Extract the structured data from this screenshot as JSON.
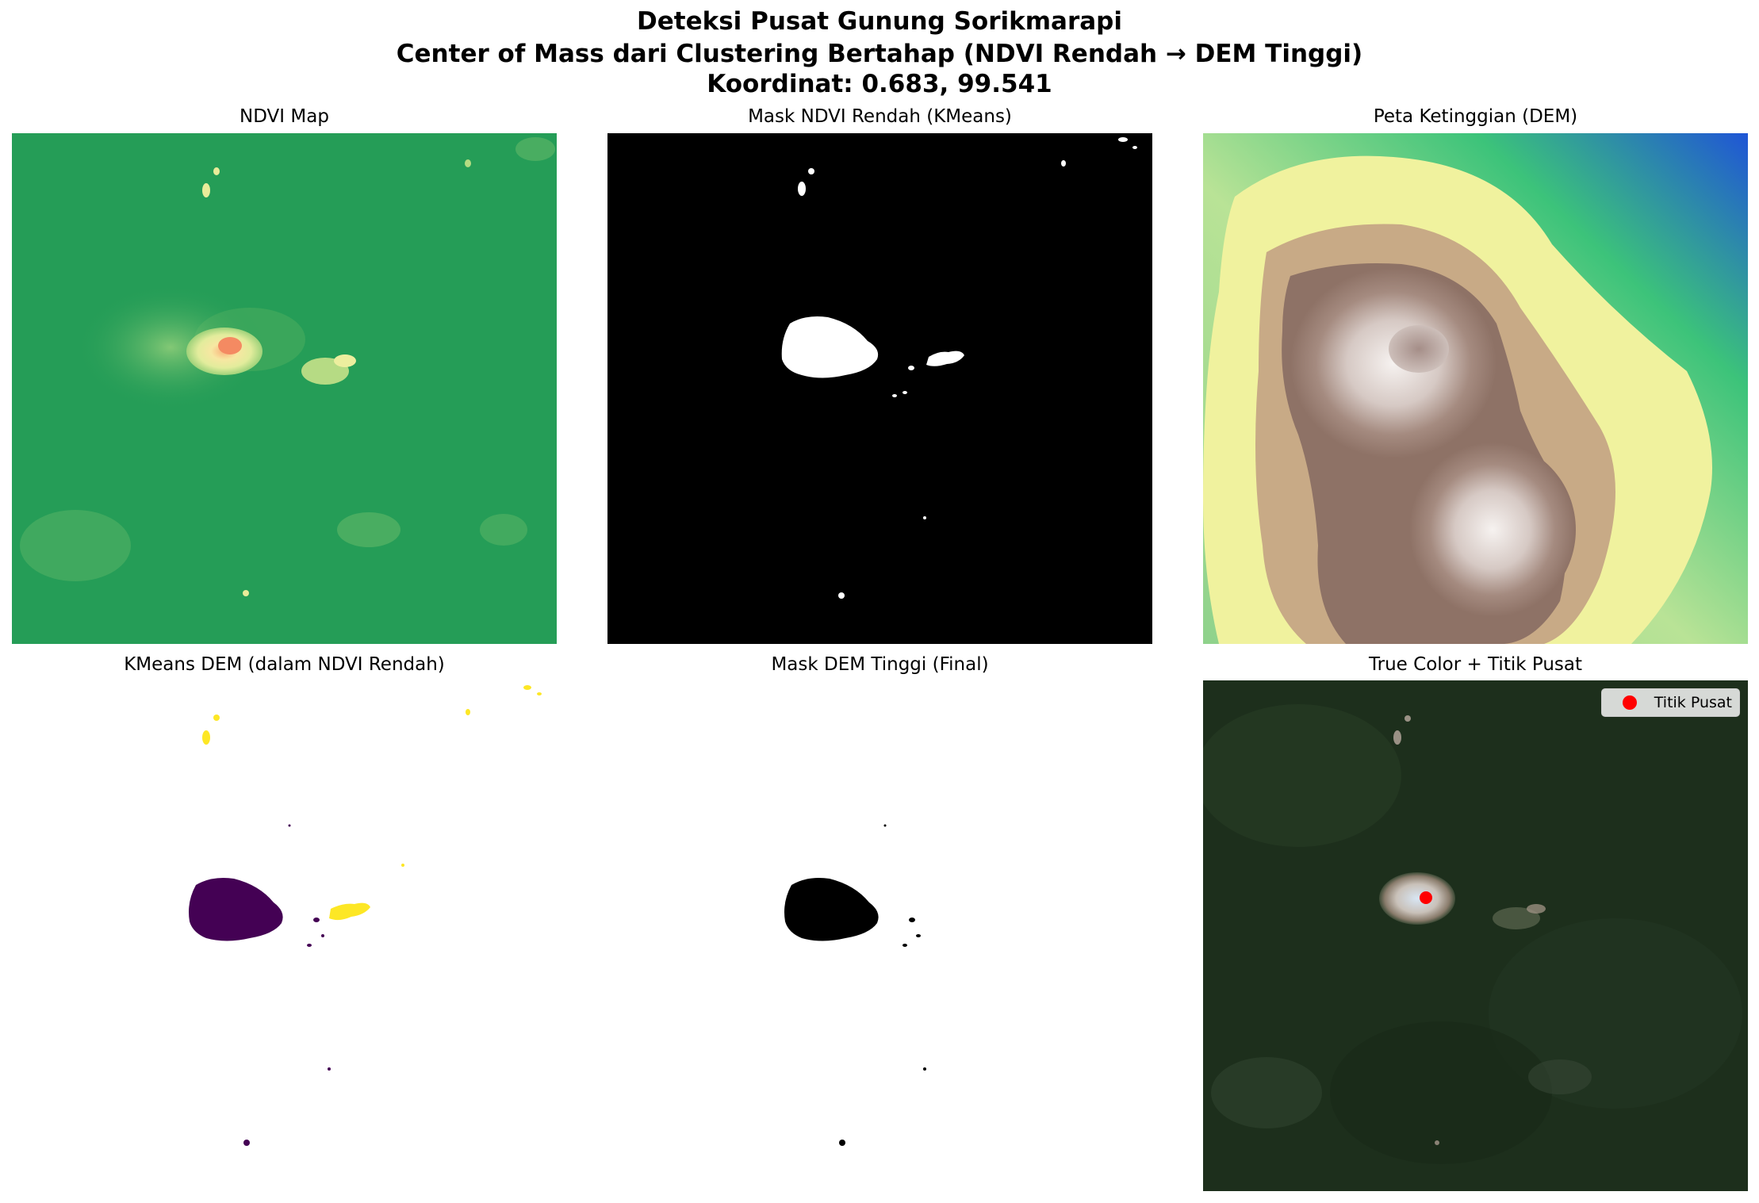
{
  "figure": {
    "title_line1": "Deteksi Pusat Gunung Sorikmarapi",
    "title_line2": "Center of Mass dari Clustering Bertahap (NDVI Rendah → DEM Tinggi)",
    "title_line3": "Koordinat: 0.683, 99.541"
  },
  "panels": {
    "ndvi": {
      "title": "NDVI Map"
    },
    "ndvi_mask": {
      "title": "Mask NDVI Rendah (KMeans)"
    },
    "dem": {
      "title": "Peta Ketinggian (DEM)"
    },
    "kmeans_dem": {
      "title": "KMeans DEM (dalam NDVI Rendah)"
    },
    "dem_mask": {
      "title": "Mask DEM Tinggi (Final)"
    },
    "true_color": {
      "title": "True Color + Titik Pusat",
      "legend_label": "Titik Pusat"
    }
  },
  "colors": {
    "ndvi_green": "#239c56",
    "ndvi_low": "#f4f3ad",
    "ndvi_lowest": "#f48a62",
    "mask_on": "#ffffff",
    "mask_off": "#000000",
    "kmeans_purple": "#440154",
    "kmeans_yellow": "#fde725",
    "center_marker": "#ff0000",
    "forest_dark": "#1d2f1c"
  }
}
